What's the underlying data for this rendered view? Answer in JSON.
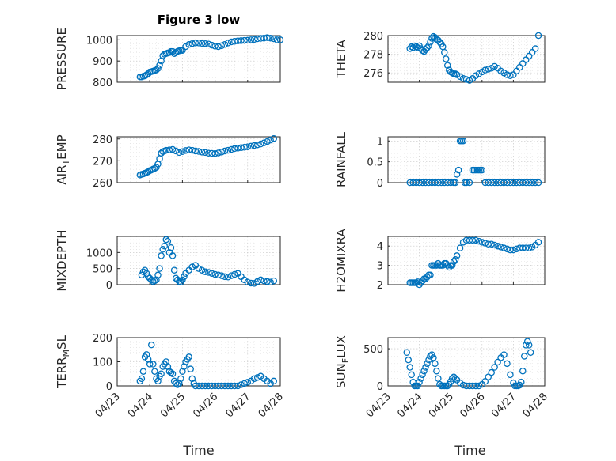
{
  "figure": {
    "title": "Figure 3 low",
    "xlabel": "Time",
    "marker_color": "#0072BD",
    "marker_shape": "circle",
    "grid": true,
    "minor_grid": true
  },
  "chart_data": [
    {
      "type": "scatter",
      "name": "pressure",
      "ylabel": "PRESSURE",
      "xlim": [
        "04/23",
        "04/28"
      ],
      "ylim": [
        800,
        1020
      ],
      "yticks": [
        800,
        900,
        1000
      ],
      "ytick_labels": [
        "800",
        "900",
        "1000"
      ],
      "x": [
        0.7,
        0.75,
        0.8,
        0.85,
        0.9,
        0.95,
        1.0,
        1.05,
        1.1,
        1.15,
        1.2,
        1.25,
        1.3,
        1.35,
        1.4,
        1.45,
        1.5,
        1.55,
        1.6,
        1.65,
        1.7,
        1.75,
        1.8,
        1.85,
        1.9,
        1.95,
        2.0,
        2.1,
        2.2,
        2.3,
        2.4,
        2.5,
        2.6,
        2.7,
        2.8,
        2.9,
        3.0,
        3.1,
        3.2,
        3.3,
        3.4,
        3.5,
        3.6,
        3.7,
        3.8,
        3.9,
        4.0,
        4.1,
        4.2,
        4.3,
        4.4,
        4.5,
        4.6,
        4.7,
        4.8,
        4.9,
        5.0
      ],
      "y": [
        825,
        825,
        828,
        830,
        835,
        840,
        848,
        850,
        852,
        855,
        858,
        865,
        880,
        900,
        925,
        932,
        935,
        938,
        940,
        945,
        945,
        935,
        940,
        945,
        948,
        950,
        950,
        968,
        978,
        982,
        985,
        985,
        983,
        982,
        980,
        975,
        970,
        968,
        972,
        978,
        985,
        990,
        993,
        995,
        996,
        997,
        998,
        1000,
        1002,
        1005,
        1007,
        1008,
        1010,
        1008,
        1005,
        1000,
        1000
      ]
    },
    {
      "type": "scatter",
      "name": "theta",
      "ylabel": "THETA",
      "xlim": [
        "04/23",
        "04/28"
      ],
      "ylim": [
        275,
        280
      ],
      "yticks": [
        276,
        278,
        280
      ],
      "ytick_labels": [
        "276",
        "278",
        "280"
      ],
      "x": [
        0.7,
        0.75,
        0.8,
        0.85,
        0.9,
        0.95,
        1.0,
        1.05,
        1.1,
        1.15,
        1.2,
        1.25,
        1.3,
        1.35,
        1.4,
        1.45,
        1.5,
        1.55,
        1.6,
        1.65,
        1.7,
        1.75,
        1.8,
        1.85,
        1.9,
        1.95,
        2.0,
        2.05,
        2.1,
        2.15,
        2.2,
        2.3,
        2.4,
        2.5,
        2.6,
        2.7,
        2.8,
        2.9,
        3.0,
        3.1,
        3.2,
        3.3,
        3.4,
        3.5,
        3.6,
        3.7,
        3.8,
        3.9,
        4.0,
        4.1,
        4.2,
        4.3,
        4.4,
        4.5,
        4.6,
        4.7,
        4.8
      ],
      "y": [
        278.6,
        278.8,
        278.7,
        278.9,
        278.8,
        278.7,
        278.9,
        278.6,
        278.4,
        278.3,
        278.5,
        278.7,
        278.9,
        279.3,
        279.7,
        279.9,
        279.8,
        279.6,
        279.5,
        279.3,
        279.1,
        278.8,
        278.2,
        277.5,
        276.8,
        276.3,
        276.1,
        276.0,
        275.9,
        275.9,
        275.8,
        275.6,
        275.4,
        275.3,
        275.2,
        275.4,
        275.7,
        275.9,
        276.1,
        276.3,
        276.4,
        276.5,
        276.7,
        276.5,
        276.2,
        276.0,
        275.8,
        275.7,
        275.8,
        276.2,
        276.6,
        277.0,
        277.4,
        277.8,
        278.2,
        278.6,
        280.0
      ]
    },
    {
      "type": "scatter",
      "name": "air_temp",
      "ylabel": "AIR_TEMP",
      "xlim": [
        "04/23",
        "04/28"
      ],
      "ylim": [
        260,
        281
      ],
      "yticks": [
        260,
        270,
        280
      ],
      "ytick_labels": [
        "260",
        "270",
        "280"
      ],
      "x": [
        0.7,
        0.75,
        0.8,
        0.85,
        0.9,
        0.95,
        1.0,
        1.05,
        1.1,
        1.15,
        1.2,
        1.25,
        1.3,
        1.35,
        1.4,
        1.45,
        1.5,
        1.6,
        1.7,
        1.8,
        1.9,
        2.0,
        2.1,
        2.2,
        2.3,
        2.4,
        2.5,
        2.6,
        2.7,
        2.8,
        2.9,
        3.0,
        3.1,
        3.2,
        3.3,
        3.4,
        3.5,
        3.6,
        3.7,
        3.8,
        3.9,
        4.0,
        4.1,
        4.2,
        4.3,
        4.4,
        4.5,
        4.6,
        4.7,
        4.8
      ],
      "y": [
        263.5,
        263.8,
        264.0,
        264.3,
        264.6,
        265.0,
        265.5,
        265.8,
        266.2,
        266.5,
        267.0,
        268.5,
        271.0,
        273.5,
        274.2,
        274.5,
        274.8,
        275.0,
        275.2,
        274.5,
        273.8,
        274.2,
        274.7,
        275.0,
        274.8,
        274.5,
        274.3,
        274.0,
        273.8,
        273.5,
        273.4,
        273.3,
        273.6,
        274.0,
        274.5,
        274.8,
        275.2,
        275.6,
        275.8,
        276.0,
        276.2,
        276.4,
        276.7,
        277.0,
        277.3,
        277.7,
        278.2,
        278.8,
        279.5,
        280.2
      ]
    },
    {
      "type": "scatter",
      "name": "rainfall",
      "ylabel": "RAINFALL",
      "xlim": [
        "04/23",
        "04/28"
      ],
      "ylim": [
        0,
        1.1
      ],
      "yticks": [
        0,
        0.5,
        1
      ],
      "ytick_labels": [
        "0",
        "0.5",
        "1"
      ],
      "x": [
        0.7,
        0.8,
        0.9,
        1.0,
        1.1,
        1.2,
        1.3,
        1.4,
        1.5,
        1.6,
        1.7,
        1.8,
        1.9,
        2.0,
        2.1,
        2.15,
        2.2,
        2.25,
        2.3,
        2.35,
        2.4,
        2.45,
        2.5,
        2.6,
        2.7,
        2.75,
        2.8,
        2.85,
        2.9,
        2.95,
        3.0,
        3.1,
        3.2,
        3.3,
        3.4,
        3.5,
        3.6,
        3.7,
        3.8,
        3.9,
        4.0,
        4.1,
        4.2,
        4.3,
        4.4,
        4.5,
        4.6,
        4.7,
        4.8
      ],
      "y": [
        0,
        0,
        0,
        0,
        0,
        0,
        0,
        0,
        0,
        0,
        0,
        0,
        0,
        0,
        0,
        0,
        0.2,
        0.3,
        1.0,
        1.0,
        1.0,
        0,
        0,
        0,
        0.3,
        0.3,
        0.3,
        0.3,
        0.3,
        0.3,
        0.3,
        0,
        0,
        0,
        0,
        0,
        0,
        0,
        0,
        0,
        0,
        0,
        0,
        0,
        0,
        0,
        0,
        0,
        0
      ]
    },
    {
      "type": "scatter",
      "name": "mixdepth",
      "ylabel": "MIXDEPTH",
      "xlim": [
        "04/23",
        "04/28"
      ],
      "ylim": [
        0,
        1500
      ],
      "yticks": [
        0,
        500,
        1000
      ],
      "ytick_labels": [
        "0",
        "500",
        "1000"
      ],
      "x": [
        0.75,
        0.8,
        0.85,
        0.9,
        0.95,
        1.0,
        1.05,
        1.1,
        1.15,
        1.2,
        1.25,
        1.3,
        1.35,
        1.4,
        1.45,
        1.5,
        1.55,
        1.6,
        1.65,
        1.7,
        1.75,
        1.8,
        1.85,
        1.9,
        1.95,
        2.0,
        2.05,
        2.1,
        2.2,
        2.3,
        2.4,
        2.5,
        2.6,
        2.7,
        2.8,
        2.9,
        3.0,
        3.1,
        3.2,
        3.3,
        3.4,
        3.5,
        3.6,
        3.7,
        3.8,
        3.9,
        4.0,
        4.1,
        4.2,
        4.3,
        4.4,
        4.5,
        4.6,
        4.7,
        4.8
      ],
      "y": [
        300,
        400,
        450,
        350,
        250,
        200,
        150,
        100,
        120,
        150,
        300,
        500,
        900,
        1100,
        1200,
        1400,
        1350,
        1000,
        1150,
        900,
        450,
        200,
        150,
        100,
        80,
        150,
        250,
        350,
        450,
        550,
        600,
        500,
        450,
        400,
        380,
        350,
        320,
        300,
        280,
        250,
        240,
        280,
        320,
        350,
        250,
        150,
        80,
        50,
        40,
        100,
        150,
        120,
        100,
        80,
        120
      ]
    },
    {
      "type": "scatter",
      "name": "h2omixra",
      "ylabel": "H2OMIXRA",
      "xlim": [
        "04/23",
        "04/28"
      ],
      "ylim": [
        2,
        4.5
      ],
      "yticks": [
        2,
        3,
        4
      ],
      "ytick_labels": [
        "2",
        "3",
        "4"
      ],
      "x": [
        0.7,
        0.75,
        0.8,
        0.85,
        0.9,
        0.95,
        1.0,
        1.05,
        1.1,
        1.15,
        1.2,
        1.25,
        1.3,
        1.35,
        1.4,
        1.45,
        1.5,
        1.55,
        1.6,
        1.65,
        1.7,
        1.75,
        1.8,
        1.85,
        1.9,
        1.95,
        2.0,
        2.05,
        2.1,
        2.15,
        2.2,
        2.3,
        2.4,
        2.5,
        2.6,
        2.7,
        2.8,
        2.9,
        3.0,
        3.1,
        3.2,
        3.3,
        3.4,
        3.5,
        3.6,
        3.7,
        3.8,
        3.9,
        4.0,
        4.1,
        4.2,
        4.3,
        4.4,
        4.5,
        4.6,
        4.7,
        4.8
      ],
      "y": [
        2.1,
        2.1,
        2.1,
        2.1,
        2.1,
        2.15,
        2.0,
        2.1,
        2.2,
        2.3,
        2.3,
        2.4,
        2.5,
        2.5,
        3.0,
        3.0,
        3.0,
        3.0,
        3.1,
        3.0,
        3.0,
        3.0,
        3.1,
        3.1,
        3.0,
        2.9,
        3.0,
        3.0,
        3.2,
        3.3,
        3.5,
        3.9,
        4.2,
        4.3,
        4.3,
        4.3,
        4.3,
        4.25,
        4.2,
        4.15,
        4.1,
        4.1,
        4.05,
        4.0,
        3.95,
        3.9,
        3.85,
        3.8,
        3.8,
        3.85,
        3.9,
        3.9,
        3.9,
        3.9,
        3.95,
        4.05,
        4.2
      ]
    },
    {
      "type": "scatter",
      "name": "terr_msl",
      "ylabel": "TERR_MSL",
      "xlim": [
        "04/23",
        "04/28"
      ],
      "ylim": [
        0,
        200
      ],
      "yticks": [
        0,
        100,
        200
      ],
      "ytick_labels": [
        "0",
        "100",
        "200"
      ],
      "x": [
        0.7,
        0.75,
        0.8,
        0.85,
        0.9,
        0.95,
        1.0,
        1.05,
        1.1,
        1.15,
        1.2,
        1.25,
        1.3,
        1.35,
        1.4,
        1.45,
        1.5,
        1.55,
        1.6,
        1.65,
        1.7,
        1.75,
        1.8,
        1.85,
        1.9,
        1.95,
        2.0,
        2.05,
        2.1,
        2.15,
        2.2,
        2.25,
        2.3,
        2.35,
        2.4,
        2.5,
        2.6,
        2.7,
        2.8,
        2.9,
        3.0,
        3.1,
        3.2,
        3.3,
        3.4,
        3.5,
        3.6,
        3.7,
        3.8,
        3.9,
        4.0,
        4.1,
        4.2,
        4.3,
        4.4,
        4.5,
        4.6,
        4.7,
        4.8
      ],
      "y": [
        20,
        30,
        60,
        120,
        130,
        110,
        90,
        170,
        90,
        60,
        30,
        20,
        40,
        50,
        80,
        90,
        100,
        80,
        60,
        55,
        50,
        20,
        10,
        5,
        10,
        30,
        60,
        80,
        100,
        110,
        120,
        70,
        30,
        10,
        0,
        0,
        0,
        0,
        0,
        0,
        0,
        0,
        0,
        0,
        0,
        0,
        0,
        0,
        5,
        10,
        15,
        20,
        30,
        35,
        40,
        30,
        20,
        10,
        20
      ]
    },
    {
      "type": "scatter",
      "name": "sun_flux",
      "ylabel": "SUN_FLUX",
      "xlim": [
        "04/23",
        "04/28"
      ],
      "ylim": [
        0,
        650
      ],
      "yticks": [
        0,
        500
      ],
      "ytick_labels": [
        "0",
        "500"
      ],
      "x": [
        0.6,
        0.65,
        0.7,
        0.75,
        0.8,
        0.85,
        0.9,
        0.95,
        1.0,
        1.05,
        1.1,
        1.15,
        1.2,
        1.25,
        1.3,
        1.35,
        1.4,
        1.45,
        1.5,
        1.55,
        1.6,
        1.65,
        1.7,
        1.75,
        1.8,
        1.85,
        1.9,
        1.95,
        2.0,
        2.05,
        2.1,
        2.15,
        2.2,
        2.3,
        2.4,
        2.5,
        2.6,
        2.7,
        2.8,
        2.9,
        3.0,
        3.1,
        3.2,
        3.3,
        3.4,
        3.5,
        3.6,
        3.7,
        3.8,
        3.9,
        4.0,
        4.05,
        4.1,
        4.15,
        4.2,
        4.25,
        4.3,
        4.35,
        4.4,
        4.45,
        4.5,
        4.55
      ],
      "y": [
        450,
        350,
        250,
        150,
        50,
        0,
        0,
        0,
        50,
        100,
        150,
        200,
        250,
        300,
        350,
        400,
        420,
        380,
        300,
        200,
        100,
        20,
        0,
        0,
        0,
        0,
        0,
        20,
        60,
        100,
        120,
        100,
        80,
        40,
        10,
        0,
        0,
        0,
        0,
        0,
        20,
        60,
        120,
        180,
        250,
        320,
        380,
        420,
        300,
        150,
        40,
        0,
        0,
        0,
        10,
        50,
        200,
        400,
        550,
        600,
        550,
        450
      ]
    }
  ],
  "xaxis": {
    "ticks": [
      0,
      1,
      2,
      3,
      4,
      5
    ],
    "tick_labels": [
      "04/23",
      "04/24",
      "04/25",
      "04/26",
      "04/27",
      "04/28"
    ]
  }
}
